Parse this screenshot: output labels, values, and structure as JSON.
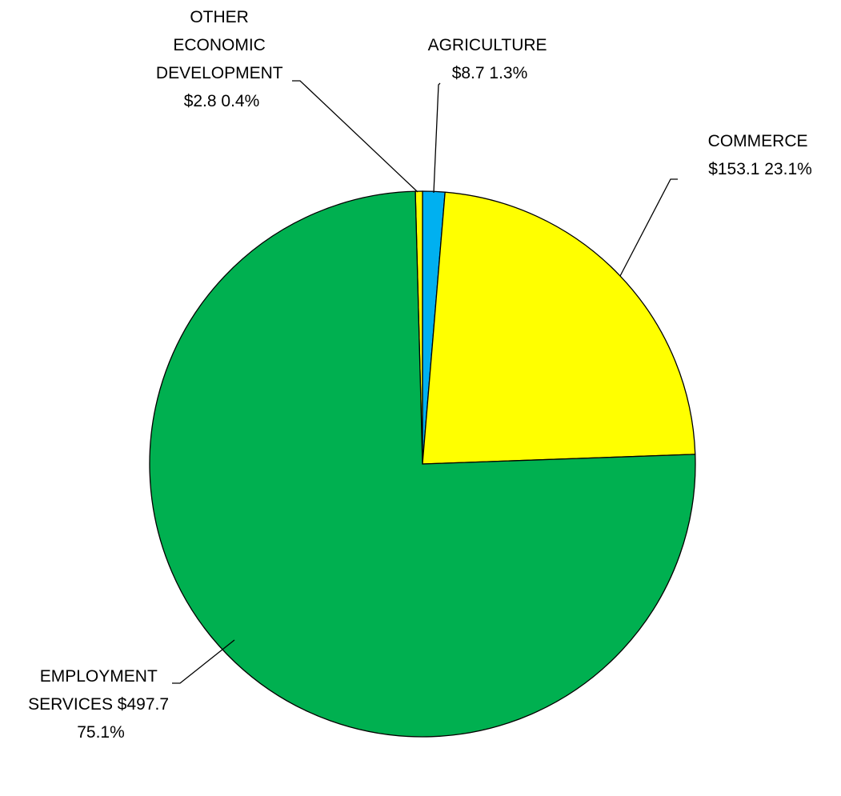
{
  "chart_data": {
    "type": "pie",
    "title": "",
    "slices": [
      {
        "name": "OTHER ECONOMIC DEVELOPMENT",
        "value": 2.8,
        "percent": 0.4,
        "color": "#ffff00",
        "label_lines": [
          "OTHER",
          "ECONOMIC",
          "DEVELOPMENT",
          "$2.8  0.4%"
        ]
      },
      {
        "name": "AGRICULTURE",
        "value": 8.7,
        "percent": 1.3,
        "color": "#00b0f0",
        "label_lines": [
          "AGRICULTURE",
          "$8.7  1.3%"
        ]
      },
      {
        "name": "COMMERCE",
        "value": 153.1,
        "percent": 23.1,
        "color": "#ffff00",
        "label_lines": [
          "COMMERCE",
          "$153.1  23.1%"
        ]
      },
      {
        "name": "EMPLOYMENT SERVICES",
        "value": 497.7,
        "percent": 75.1,
        "color": "#00b050",
        "label_lines": [
          "EMPLOYMENT",
          "SERVICES  $497.7",
          "75.1%"
        ]
      }
    ],
    "legend": "none",
    "labels": "outside with leader lines"
  }
}
